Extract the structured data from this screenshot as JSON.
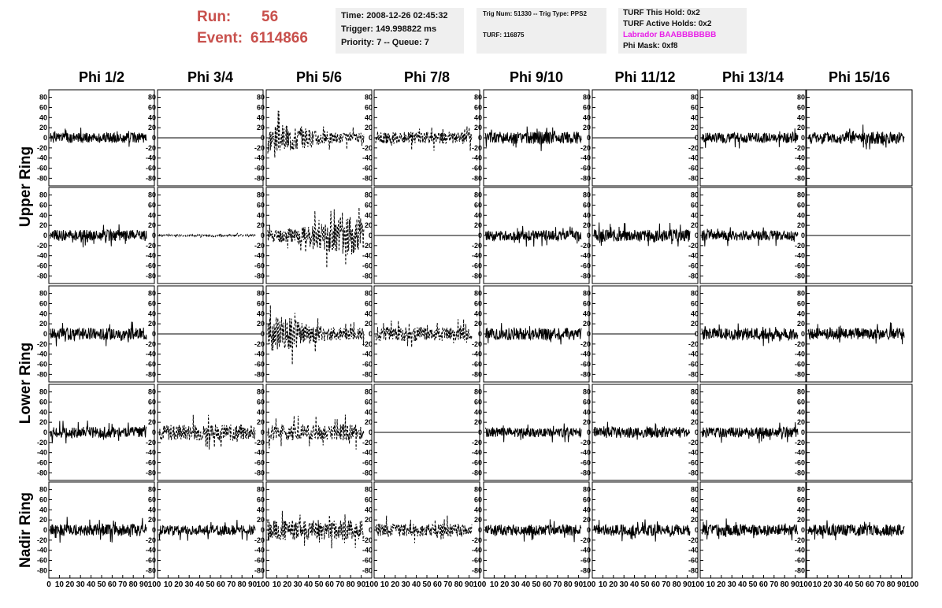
{
  "header": {
    "run_label": "Run:",
    "run_value": "56",
    "event_label": "Event:",
    "event_value": "6114866",
    "time": "Time: 2008-12-26 02:45:32",
    "trigger": "Trigger: 149.998822 ms",
    "priority": "Priority: 7 -- Queue: 7",
    "trig_num": "Trig Num: 51330 -- Trig Type: PPS2",
    "turf": "TURF: 116875",
    "turf_this_hold": "TURF This Hold: 0x2",
    "turf_active_holds": "TURF Active Holds: 0x2",
    "labrador": "Labrador BAABBBBBBB",
    "phi_mask": "Phi Mask: 0xf8"
  },
  "colors": {
    "run_text": "#c8504c",
    "labrador_text": "#e81fe8",
    "info_bg": "#efefef",
    "trace": "#000000"
  },
  "chart_data": {
    "type": "line",
    "layout": "grid of 5 rows x 8 columns of waveform panels",
    "columns": [
      "Phi 1/2",
      "Phi 3/4",
      "Phi 5/6",
      "Phi 7/8",
      "Phi 9/10",
      "Phi 11/12",
      "Phi 13/14",
      "Phi 15/16"
    ],
    "row_labels": [
      {
        "text": "Upper Ring",
        "rows": [
          0,
          1
        ]
      },
      {
        "text": "Lower Ring",
        "rows": [
          2,
          3
        ]
      },
      {
        "text": "Nadir Ring",
        "rows": [
          4,
          4
        ]
      }
    ],
    "y_ticks": [
      "80",
      "60",
      "40",
      "20",
      "0",
      "-20",
      "-40",
      "-60",
      "-80"
    ],
    "y_tick_values": [
      80,
      60,
      40,
      20,
      0,
      -20,
      -40,
      -60,
      -80
    ],
    "ylim": [
      -95,
      95
    ],
    "xlim": [
      0,
      100
    ],
    "x_tick_values": [
      0,
      10,
      20,
      30,
      40,
      50,
      60,
      70,
      80,
      90,
      100
    ],
    "x_ticks_first": [
      "0",
      "10",
      "20",
      "30",
      "40",
      "50",
      "60",
      "70",
      "80",
      "90",
      "100"
    ],
    "x_ticks_other": [
      "10",
      "20",
      "30",
      "40",
      "50",
      "60",
      "70",
      "80",
      "90",
      "100"
    ],
    "trace_samples": 260,
    "panels": [
      [
        {
          "style": "solid",
          "amp": 10,
          "seed": 1
        },
        {
          "style": "flat",
          "amp": 0,
          "seed": 2
        },
        {
          "style": "dashed",
          "amp": 18,
          "seed": 3,
          "peak": 0.15
        },
        {
          "style": "dashed",
          "amp": 12,
          "seed": 4
        },
        {
          "style": "solid",
          "amp": 12,
          "seed": 5
        },
        {
          "style": "flat",
          "amp": 0,
          "seed": 6
        },
        {
          "style": "solid",
          "amp": 10,
          "seed": 7
        },
        {
          "style": "solid",
          "amp": 12,
          "seed": 8
        }
      ],
      [
        {
          "style": "solid",
          "amp": 11,
          "seed": 9
        },
        {
          "style": "dashed",
          "amp": 2,
          "seed": 10
        },
        {
          "style": "dashed",
          "amp": 25,
          "seed": 11,
          "peak": 0.85
        },
        {
          "style": "flat",
          "amp": 0,
          "seed": 12
        },
        {
          "style": "solid",
          "amp": 10,
          "seed": 13
        },
        {
          "style": "solid",
          "amp": 12,
          "seed": 14
        },
        {
          "style": "solid",
          "amp": 10,
          "seed": 15
        },
        {
          "style": "flat",
          "amp": 0,
          "seed": 16
        }
      ],
      [
        {
          "style": "solid",
          "amp": 12,
          "seed": 17
        },
        {
          "style": "flat",
          "amp": 0,
          "seed": 18
        },
        {
          "style": "dashed",
          "amp": 22,
          "seed": 19,
          "peak": 0.1
        },
        {
          "style": "dashed",
          "amp": 14,
          "seed": 20
        },
        {
          "style": "solid",
          "amp": 12,
          "seed": 21
        },
        {
          "style": "flat",
          "amp": 0,
          "seed": 22
        },
        {
          "style": "solid",
          "amp": 12,
          "seed": 23
        },
        {
          "style": "solid",
          "amp": 11,
          "seed": 24
        }
      ],
      [
        {
          "style": "solid",
          "amp": 11,
          "seed": 25
        },
        {
          "style": "dashed",
          "amp": 16,
          "seed": 26
        },
        {
          "style": "dashed",
          "amp": 16,
          "seed": 27
        },
        {
          "style": "flat",
          "amp": 0,
          "seed": 28
        },
        {
          "style": "solid",
          "amp": 9,
          "seed": 29
        },
        {
          "style": "solid",
          "amp": 11,
          "seed": 30
        },
        {
          "style": "solid",
          "amp": 10,
          "seed": 31
        },
        {
          "style": "flat",
          "amp": 0,
          "seed": 32
        }
      ],
      [
        {
          "style": "solid",
          "amp": 12,
          "seed": 33
        },
        {
          "style": "solid",
          "amp": 10,
          "seed": 34
        },
        {
          "style": "dashed",
          "amp": 20,
          "seed": 35
        },
        {
          "style": "dashed",
          "amp": 13,
          "seed": 36
        },
        {
          "style": "solid",
          "amp": 11,
          "seed": 37
        },
        {
          "style": "solid",
          "amp": 11,
          "seed": 38
        },
        {
          "style": "solid",
          "amp": 11,
          "seed": 39
        },
        {
          "style": "solid",
          "amp": 11,
          "seed": 40
        }
      ]
    ]
  }
}
